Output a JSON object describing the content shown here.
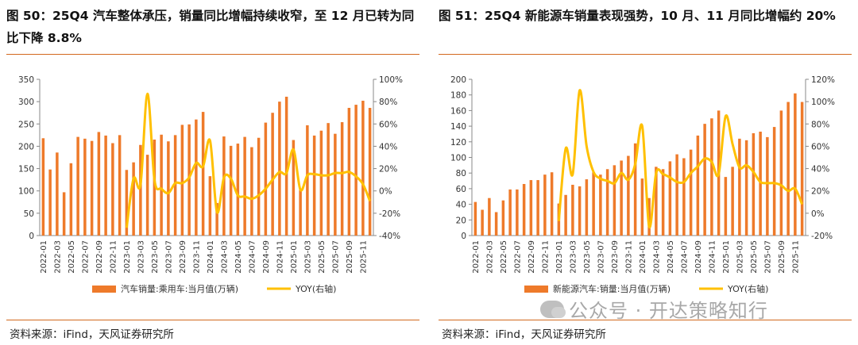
{
  "colors": {
    "bar": "#ee7a2a",
    "line": "#ffc000",
    "rule": "#d2691e",
    "axis": "#888888"
  },
  "watermark": {
    "icon": "wechat-icon",
    "text": "公众号 · 开达策略知行"
  },
  "charts": [
    {
      "title": "图 50：25Q4 汽车整体承压，销量同比增幅持续收窄，至 12 月已转为同比下降 8.8%",
      "source": "资料来源：iFind，天风证券研究所",
      "chart_data": {
        "type": "bar+line",
        "categories": [
          "2022-01",
          "2022-02",
          "2022-03",
          "2022-04",
          "2022-05",
          "2022-06",
          "2022-07",
          "2022-08",
          "2022-09",
          "2022-10",
          "2022-11",
          "2022-12",
          "2023-01",
          "2023-02",
          "2023-03",
          "2023-04",
          "2023-05",
          "2023-06",
          "2023-07",
          "2023-08",
          "2023-09",
          "2023-10",
          "2023-11",
          "2023-12",
          "2024-01",
          "2024-02",
          "2024-03",
          "2024-04",
          "2024-05",
          "2024-06",
          "2024-07",
          "2024-08",
          "2024-09",
          "2024-10",
          "2024-11",
          "2024-12",
          "2025-01",
          "2025-02",
          "2025-03",
          "2025-04",
          "2025-05",
          "2025-06",
          "2025-07",
          "2025-08",
          "2025-09",
          "2025-10",
          "2025-11",
          "2025-12"
        ],
        "x_tick_labels": [
          "2022-01",
          "2022-03",
          "2022-05",
          "2022-07",
          "2022-09",
          "2022-11",
          "2023-01",
          "2023-03",
          "2023-05",
          "2023-07",
          "2023-09",
          "2023-11",
          "2024-01",
          "2024-03",
          "2024-05",
          "2024-07",
          "2024-09",
          "2024-11",
          "2025-01",
          "2025-03",
          "2025-05",
          "2025-07",
          "2025-09",
          "2025-11"
        ],
        "series": [
          {
            "name": "汽车销量:乘用车:当月值(万辆)",
            "type": "bar",
            "axis": "left",
            "values": [
              218,
              148,
              186,
              97,
              162,
              221,
              217,
              212,
              232,
              224,
              207,
              225,
              147,
              164,
              203,
              181,
              215,
              226,
              211,
              225,
              248,
              249,
              260,
              277,
              133,
              73,
              222,
              201,
              206,
              221,
              198,
              219,
              253,
              275,
              300,
              311,
              214,
              102,
              247,
              224,
              235,
              252,
              228,
              254,
              286,
              293,
              302,
              286
            ]
          },
          {
            "name": "YOY(右轴)",
            "type": "line",
            "axis": "right",
            "values": [
              null,
              null,
              null,
              null,
              null,
              null,
              null,
              null,
              null,
              null,
              null,
              null,
              -33,
              11,
              6,
              87,
              10,
              2,
              -2,
              7,
              7,
              12,
              25,
              22,
              45,
              -19,
              12,
              11,
              -4,
              -5,
              -7,
              -4,
              2,
              10,
              17,
              16,
              37,
              1,
              14,
              15,
              14,
              14,
              16,
              16,
              17,
              13,
              6,
              -9
            ]
          }
        ],
        "left_axis": {
          "min": 0,
          "max": 350,
          "ticks": [
            "0",
            "50",
            "100",
            "150",
            "200",
            "250",
            "300",
            "350"
          ]
        },
        "right_axis": {
          "min": -40,
          "max": 100,
          "ticks": [
            "-40%",
            "-20%",
            "0%",
            "20%",
            "40%",
            "60%",
            "80%",
            "100%"
          ]
        },
        "legend": [
          {
            "label": "汽车销量:乘用车:当月值(万辆)",
            "kind": "bar"
          },
          {
            "label": "YOY(右轴)",
            "kind": "line"
          }
        ]
      }
    },
    {
      "title": "图 51：25Q4 新能源车销量表现强势，10 月、11 月同比增幅约 20%",
      "source": "资料来源：iFind，天风证券研究所",
      "chart_data": {
        "type": "bar+line",
        "categories": [
          "2022-01",
          "2022-02",
          "2022-03",
          "2022-04",
          "2022-05",
          "2022-06",
          "2022-07",
          "2022-08",
          "2022-09",
          "2022-10",
          "2022-11",
          "2022-12",
          "2023-01",
          "2023-02",
          "2023-03",
          "2023-04",
          "2023-05",
          "2023-06",
          "2023-07",
          "2023-08",
          "2023-09",
          "2023-10",
          "2023-11",
          "2023-12",
          "2024-01",
          "2024-02",
          "2024-03",
          "2024-04",
          "2024-05",
          "2024-06",
          "2024-07",
          "2024-08",
          "2024-09",
          "2024-10",
          "2024-11",
          "2024-12",
          "2025-01",
          "2025-02",
          "2025-03",
          "2025-04",
          "2025-05",
          "2025-06",
          "2025-07",
          "2025-08",
          "2025-09",
          "2025-10",
          "2025-11",
          "2025-12"
        ],
        "x_tick_labels": [
          "2022-01",
          "2022-03",
          "2022-05",
          "2022-07",
          "2022-09",
          "2022-11",
          "2023-01",
          "2023-03",
          "2023-05",
          "2023-07",
          "2023-09",
          "2023-11",
          "2024-01",
          "2024-03",
          "2024-05",
          "2024-07",
          "2024-09",
          "2024-11",
          "2025-01",
          "2025-03",
          "2025-05",
          "2025-07",
          "2025-09",
          "2025-11"
        ],
        "series": [
          {
            "name": "新能源汽车:销量:当月值(万辆)",
            "type": "bar",
            "axis": "left",
            "values": [
              43,
              33,
              48,
              30,
              45,
              59,
              59,
              66,
              71,
              71,
              78,
              81,
              41,
              52,
              65,
              63,
              72,
              81,
              78,
              85,
              90,
              96,
              102,
              118,
              73,
              48,
              88,
              85,
              95,
              104,
              99,
              110,
              128,
              143,
              150,
              160,
              75,
              88,
              124,
              122,
              131,
              133,
              126,
              139,
              160,
              171,
              182,
              171
            ]
          },
          {
            "name": "YOY(右轴)",
            "type": "line",
            "axis": "right",
            "values": [
              null,
              null,
              null,
              null,
              null,
              null,
              null,
              null,
              null,
              null,
              null,
              null,
              -7,
              58,
              35,
              110,
              60,
              37,
              31,
              29,
              27,
              36,
              30,
              44,
              78,
              -12,
              36,
              35,
              32,
              28,
              28,
              36,
              42,
              49,
              46,
              35,
              87,
              62,
              41,
              43,
              37,
              28,
              27,
              27,
              25,
              20,
              22,
              8
            ]
          }
        ],
        "left_axis": {
          "min": 0,
          "max": 200,
          "ticks": [
            "0",
            "20",
            "40",
            "60",
            "80",
            "100",
            "120",
            "140",
            "160",
            "180",
            "200"
          ]
        },
        "right_axis": {
          "min": -20,
          "max": 120,
          "ticks": [
            "-20%",
            "0%",
            "20%",
            "40%",
            "60%",
            "80%",
            "100%",
            "120%"
          ]
        },
        "legend": [
          {
            "label": "新能源汽车:销量:当月值(万辆)",
            "kind": "bar"
          },
          {
            "label": "YOY(右轴)",
            "kind": "line"
          }
        ]
      }
    }
  ]
}
